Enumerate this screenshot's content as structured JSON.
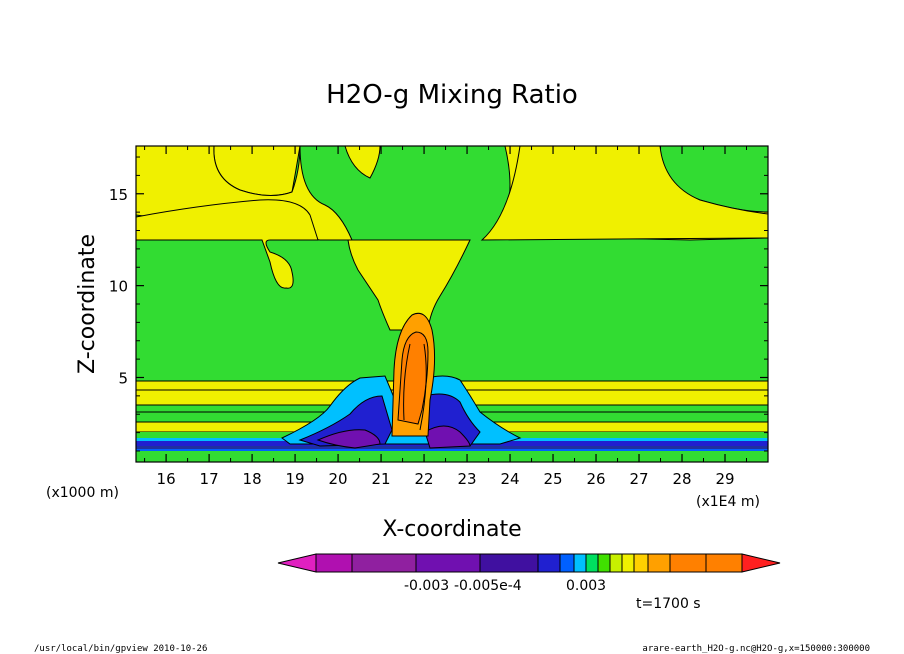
{
  "chart_data": {
    "type": "heatmap",
    "title": "H2O-g Mixing Ratio",
    "xlabel": "X-coordinate",
    "ylabel": "Z-coordinate",
    "x_unit_note": "(x1E4 m)",
    "y_unit_note": "(x1000 m)",
    "xlim": [
      15.3,
      30
    ],
    "ylim": [
      0.4,
      17.6
    ],
    "x_ticks": [
      16,
      17,
      18,
      19,
      20,
      21,
      22,
      23,
      24,
      25,
      26,
      27,
      28,
      29
    ],
    "y_ticks": [
      5,
      10,
      15
    ],
    "colorbar": {
      "colors": [
        "#e020c0",
        "#b010b0",
        "#9020a0",
        "#7010b0",
        "#4010a0",
        "#2020d0",
        "#0060ff",
        "#00c0ff",
        "#00e060",
        "#40e000",
        "#c8f000",
        "#f0f000",
        "#ffd000",
        "#ffa000",
        "#ff8000",
        "#ff2020"
      ],
      "tick_labels": [
        "-0.003",
        "-0.005e-4",
        "0.003"
      ]
    },
    "time_label": "t=1700 s"
  },
  "footer": {
    "left": "/usr/local/bin/gpview  2010-10-26",
    "right": "arare-earth_H2O-g.nc@H2O-g,x=150000:300000"
  }
}
